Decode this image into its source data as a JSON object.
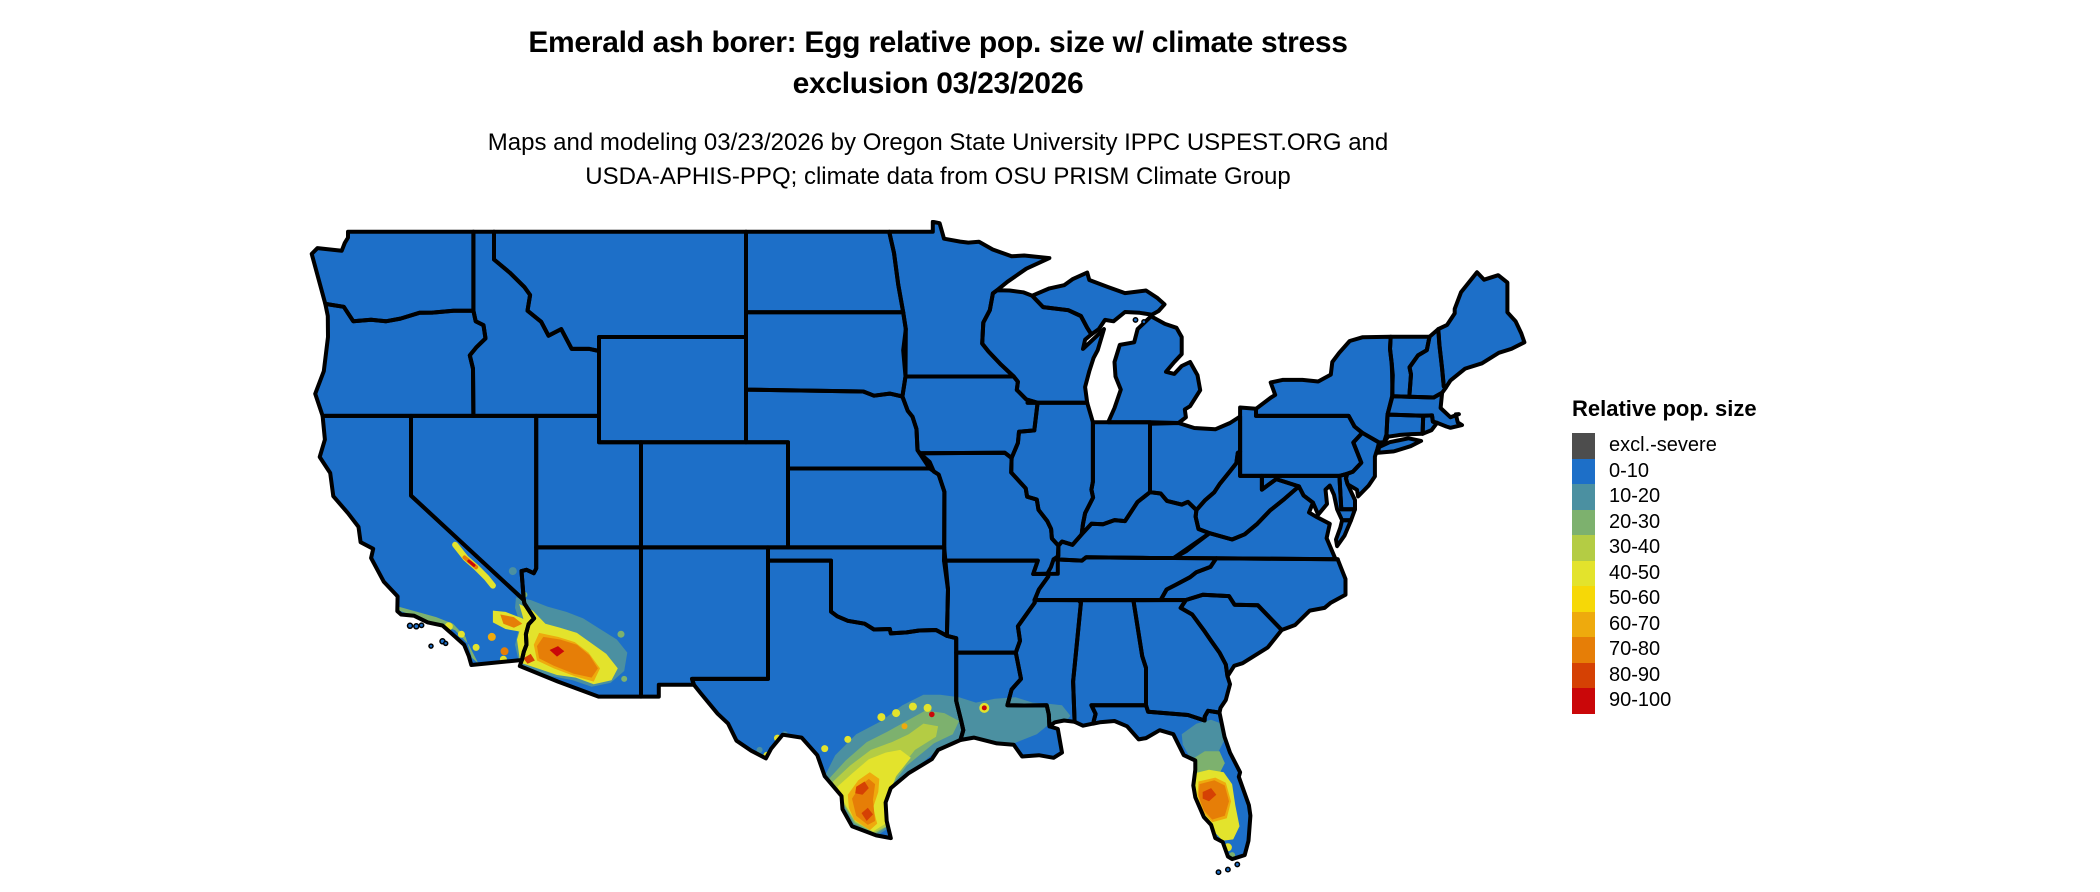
{
  "header": {
    "title_line1": "Emerald ash borer: Egg relative pop. size w/ climate stress",
    "title_line2": "exclusion 03/23/2026",
    "subtitle_line1": "Maps and modeling 03/23/2026 by Oregon State University IPPC USPEST.ORG and",
    "subtitle_line2": "USDA-APHIS-PPQ; climate data from OSU PRISM Climate Group"
  },
  "legend": {
    "title": "Relative pop. size",
    "items": [
      {
        "label": "excl.-severe",
        "color": "#4d4d4d"
      },
      {
        "label": "0-10",
        "color": "#1d6fc8"
      },
      {
        "label": "10-20",
        "color": "#4b90a1"
      },
      {
        "label": "20-30",
        "color": "#7db16e"
      },
      {
        "label": "30-40",
        "color": "#b4cc44"
      },
      {
        "label": "40-50",
        "color": "#e3e32c"
      },
      {
        "label": "50-60",
        "color": "#f6d807"
      },
      {
        "label": "60-70",
        "color": "#eeaa0d"
      },
      {
        "label": "70-80",
        "color": "#e67e07"
      },
      {
        "label": "80-90",
        "color": "#d54104"
      },
      {
        "label": "90-100",
        "color": "#ca0709"
      }
    ]
  },
  "map": {
    "background_color": "#ffffff",
    "land_base_color": "#1d6fc8",
    "land_base_class": "0-10",
    "border_color": "#000000",
    "high_value_regions": [
      {
        "area": "southern Arizona / southeastern California deserts",
        "classes": "10-100"
      },
      {
        "area": "Death Valley region, eastern California",
        "classes": "40-100"
      },
      {
        "area": "southern Texas",
        "classes": "10-90"
      },
      {
        "area": "Gulf coast of Texas, Louisiana and Mississippi",
        "classes": "10-40"
      },
      {
        "area": "central and southern Florida peninsula",
        "classes": "10-90"
      }
    ]
  }
}
